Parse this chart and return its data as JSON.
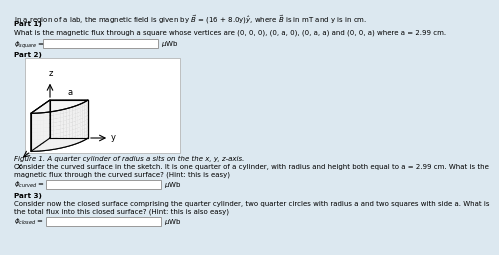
{
  "title_line": "In a region of a lab, the magnetic field is given by $\\vec{B}$ = (16 + 8.0y)$\\hat{y}$, where $\\vec{B}$ is in mT and y is in cm.",
  "part1_label": "Part 1)",
  "part1_text": "What is the magnetic flux through a square whose vertices are (0, 0, 0), (0, a, 0), (0, a, a) and (0, 0, a) where a = 2.99 cm.",
  "phi_square_label": "$\\phi_{square}$ =",
  "phi_square_unit": "$\\mu$Wb",
  "part2_label": "Part 2)",
  "fig_caption": "Figure 1. A quarter cylinder of radius a sits on the the x, y, z-axis.",
  "part2_text1": "Consider the curved surface in the sketch. It is one quarter of a cylinder, with radius and height both equal to a = 2.99 cm. What is the",
  "part2_text2": "magnetic flux through the curved surface? (Hint: this is easy)",
  "phi_curved_label": "$\\phi_{curved}$ =",
  "phi_curved_unit": "$\\mu$Wb",
  "part3_label": "Part 3)",
  "part3_text1": "Consider now the closed surface comprising the quarter cylinder, two quarter circles with radius a and two squares with side a. What is",
  "part3_text2": "the total flux into this closed surface? (Hint: this is also easy)",
  "phi_closed_label": "$\\phi_{closed}$ =",
  "phi_closed_unit": "$\\mu$Wb",
  "bg_color": "#dce8f0",
  "fig_bg_color": "#e8f2f8",
  "box_facecolor": "white",
  "box_edgecolor": "#999999",
  "text_color": "black"
}
